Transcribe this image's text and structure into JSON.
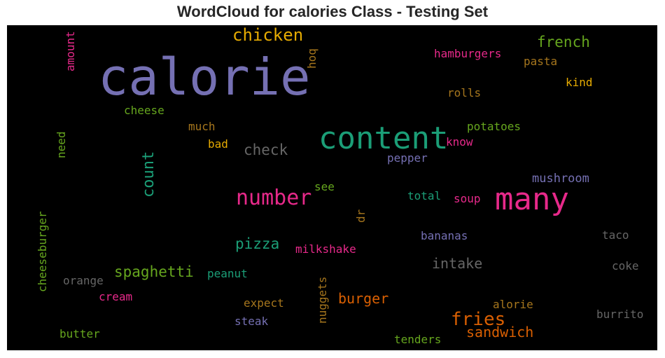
{
  "chart_data": {
    "type": "wordcloud",
    "title": "WordCloud for calories Class - Testing Set",
    "background": "#000000",
    "words": [
      {
        "text": "calorie",
        "color": "#7570b3",
        "weight": 72,
        "orientation": "horizontal"
      },
      {
        "text": "content",
        "color": "#1b9e77",
        "weight": 44,
        "orientation": "horizontal"
      },
      {
        "text": "many",
        "color": "#e7298a",
        "weight": 44,
        "orientation": "horizontal"
      },
      {
        "text": "number",
        "color": "#e7298a",
        "weight": 30,
        "orientation": "horizontal"
      },
      {
        "text": "chicken",
        "color": "#e6ab02",
        "weight": 24,
        "orientation": "horizontal"
      },
      {
        "text": "fries",
        "color": "#d95f02",
        "weight": 26,
        "orientation": "horizontal"
      },
      {
        "text": "count",
        "color": "#1b9e77",
        "weight": 22,
        "orientation": "vertical"
      },
      {
        "text": "french",
        "color": "#66a61e",
        "weight": 21,
        "orientation": "horizontal"
      },
      {
        "text": "check",
        "color": "#666666",
        "weight": 21,
        "orientation": "horizontal"
      },
      {
        "text": "spaghetti",
        "color": "#66a61e",
        "weight": 21,
        "orientation": "horizontal"
      },
      {
        "text": "pizza",
        "color": "#1b9e77",
        "weight": 21,
        "orientation": "horizontal"
      },
      {
        "text": "intake",
        "color": "#666666",
        "weight": 20,
        "orientation": "horizontal"
      },
      {
        "text": "burger",
        "color": "#d95f02",
        "weight": 20,
        "orientation": "horizontal"
      },
      {
        "text": "sandwich",
        "color": "#d95f02",
        "weight": 20,
        "orientation": "horizontal"
      },
      {
        "text": "hamburgers",
        "color": "#e7298a",
        "weight": 16,
        "orientation": "horizontal"
      },
      {
        "text": "pasta",
        "color": "#a6761d",
        "weight": 16,
        "orientation": "horizontal"
      },
      {
        "text": "kind",
        "color": "#e6ab02",
        "weight": 16,
        "orientation": "horizontal"
      },
      {
        "text": "rolls",
        "color": "#a6761d",
        "weight": 16,
        "orientation": "horizontal"
      },
      {
        "text": "potatoes",
        "color": "#66a61e",
        "weight": 16,
        "orientation": "horizontal"
      },
      {
        "text": "know",
        "color": "#e7298a",
        "weight": 16,
        "orientation": "horizontal"
      },
      {
        "text": "pepper",
        "color": "#7570b3",
        "weight": 16,
        "orientation": "horizontal"
      },
      {
        "text": "mushroom",
        "color": "#7570b3",
        "weight": 17,
        "orientation": "horizontal"
      },
      {
        "text": "soup",
        "color": "#e7298a",
        "weight": 16,
        "orientation": "horizontal"
      },
      {
        "text": "total",
        "color": "#1b9e77",
        "weight": 16,
        "orientation": "horizontal"
      },
      {
        "text": "see",
        "color": "#66a61e",
        "weight": 16,
        "orientation": "horizontal"
      },
      {
        "text": "dr",
        "color": "#a6761d",
        "weight": 16,
        "orientation": "vertical"
      },
      {
        "text": "bananas",
        "color": "#7570b3",
        "weight": 16,
        "orientation": "horizontal"
      },
      {
        "text": "taco",
        "color": "#666666",
        "weight": 16,
        "orientation": "horizontal"
      },
      {
        "text": "coke",
        "color": "#666666",
        "weight": 16,
        "orientation": "horizontal"
      },
      {
        "text": "milkshake",
        "color": "#e7298a",
        "weight": 16,
        "orientation": "horizontal"
      },
      {
        "text": "peanut",
        "color": "#1b9e77",
        "weight": 16,
        "orientation": "horizontal"
      },
      {
        "text": "alorie",
        "color": "#a6761d",
        "weight": 16,
        "orientation": "horizontal"
      },
      {
        "text": "burrito",
        "color": "#666666",
        "weight": 16,
        "orientation": "horizontal"
      },
      {
        "text": "expect",
        "color": "#a6761d",
        "weight": 16,
        "orientation": "horizontal"
      },
      {
        "text": "steak",
        "color": "#7570b3",
        "weight": 16,
        "orientation": "horizontal"
      },
      {
        "text": "tenders",
        "color": "#66a61e",
        "weight": 16,
        "orientation": "horizontal"
      },
      {
        "text": "nuggets",
        "color": "#a6761d",
        "weight": 16,
        "orientation": "vertical"
      },
      {
        "text": "cheese",
        "color": "#66a61e",
        "weight": 16,
        "orientation": "horizontal"
      },
      {
        "text": "much",
        "color": "#a6761d",
        "weight": 16,
        "orientation": "horizontal"
      },
      {
        "text": "bad",
        "color": "#e6ab02",
        "weight": 16,
        "orientation": "horizontal"
      },
      {
        "text": "need",
        "color": "#66a61e",
        "weight": 16,
        "orientation": "vertical"
      },
      {
        "text": "amount",
        "color": "#e7298a",
        "weight": 16,
        "orientation": "vertical"
      },
      {
        "text": "hoq",
        "color": "#a6761d",
        "weight": 16,
        "orientation": "vertical"
      },
      {
        "text": "cheeseburger",
        "color": "#66a61e",
        "weight": 16,
        "orientation": "vertical"
      },
      {
        "text": "orange",
        "color": "#666666",
        "weight": 16,
        "orientation": "horizontal"
      },
      {
        "text": "cream",
        "color": "#e7298a",
        "weight": 16,
        "orientation": "horizontal"
      },
      {
        "text": "butter",
        "color": "#66a61e",
        "weight": 16,
        "orientation": "horizontal"
      }
    ]
  }
}
